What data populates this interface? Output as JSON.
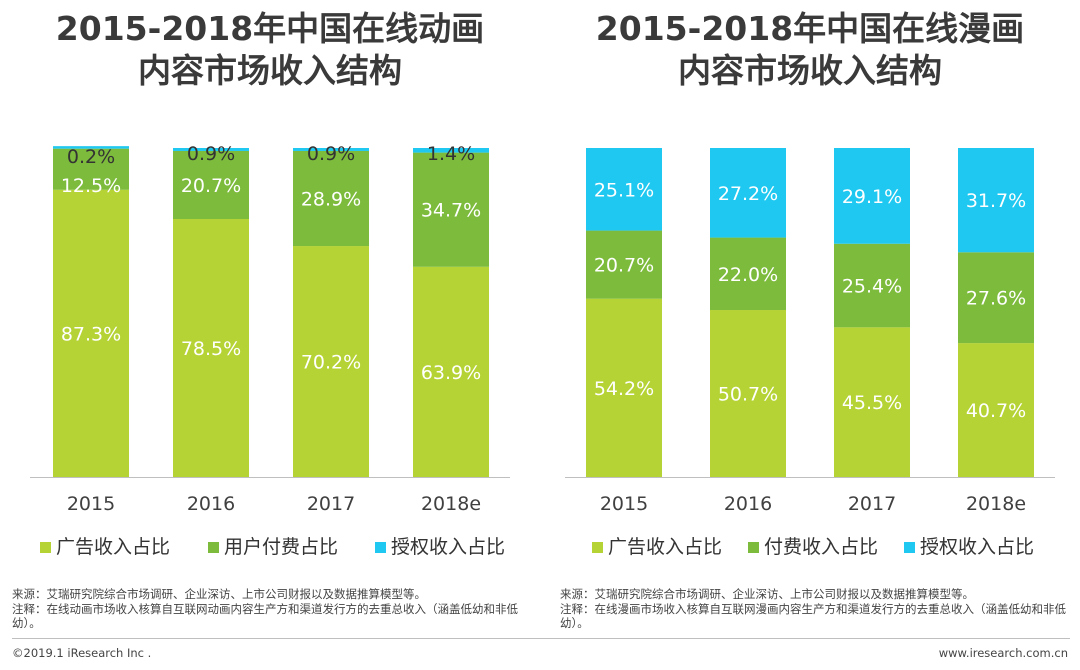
{
  "colors": {
    "ad": "#b5d334",
    "pay": "#7dbb3c",
    "license": "#1ec8f0"
  },
  "left": {
    "title_line1": "2015-2018年中国在线动画",
    "title_line2": "内容市场收入结构",
    "source_line1": "来源：艾瑞研究院综合市场调研、企业深访、上市公司财报以及数据推算模型等。",
    "source_line2": "注释：在线动画市场收入核算自互联网动画内容生产方和渠道发行方的去重总收入（涵盖低幼和非低幼）。"
  },
  "right": {
    "title_line1": "2015-2018年中国在线漫画",
    "title_line2": "内容市场收入结构",
    "source_line1": "来源：艾瑞研究院综合市场调研、企业深访、上市公司财报以及数据推算模型等。",
    "source_line2": "注释：在线漫画市场收入核算自互联网漫画内容生产方和渠道发行方的去重总收入（涵盖低幼和非低幼）。"
  },
  "footer": {
    "copyright": "©2019.1 iResearch Inc .",
    "website": "www.iresearch.com.cn"
  },
  "chart_data": [
    {
      "type": "bar",
      "stacked": true,
      "percent": true,
      "title": "2015-2018年中国在线动画内容市场收入结构",
      "categories": [
        "2015",
        "2016",
        "2017",
        "2018e"
      ],
      "series": [
        {
          "name": "广告收入占比",
          "color": "#b5d334",
          "values": [
            87.3,
            78.5,
            70.2,
            63.9
          ],
          "labels": [
            "87.3%",
            "78.5%",
            "70.2%",
            "63.9%"
          ]
        },
        {
          "name": "用户付费占比",
          "color": "#7dbb3c",
          "values": [
            12.5,
            20.7,
            28.9,
            34.7
          ],
          "labels": [
            "12.5%",
            "20.7%",
            "28.9%",
            "34.7%"
          ]
        },
        {
          "name": "授权收入占比",
          "color": "#1ec8f0",
          "values": [
            0.2,
            0.9,
            0.9,
            1.4
          ],
          "labels": [
            "0.2%",
            "0.9%",
            "0.9%",
            "1.4%"
          ]
        }
      ],
      "legend": "bottom",
      "grid": false
    },
    {
      "type": "bar",
      "stacked": true,
      "percent": true,
      "title": "2015-2018年中国在线漫画内容市场收入结构",
      "categories": [
        "2015",
        "2016",
        "2017",
        "2018e"
      ],
      "series": [
        {
          "name": "广告收入占比",
          "color": "#b5d334",
          "values": [
            54.2,
            50.7,
            45.5,
            40.7
          ],
          "labels": [
            "54.2%",
            "50.7%",
            "45.5%",
            "40.7%"
          ]
        },
        {
          "name": "付费收入占比",
          "color": "#7dbb3c",
          "values": [
            20.7,
            22.0,
            25.4,
            27.6
          ],
          "labels": [
            "20.7%",
            "22.0%",
            "25.4%",
            "27.6%"
          ]
        },
        {
          "name": "授权收入占比",
          "color": "#1ec8f0",
          "values": [
            25.1,
            27.2,
            29.1,
            31.7
          ],
          "labels": [
            "25.1%",
            "27.2%",
            "29.1%",
            "31.7%"
          ]
        }
      ],
      "legend": "bottom",
      "grid": false
    }
  ]
}
